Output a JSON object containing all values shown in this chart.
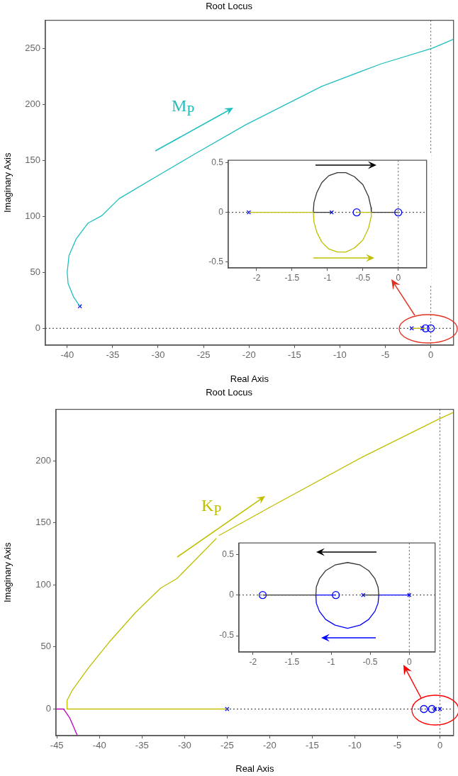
{
  "chart_data": [
    {
      "type": "line",
      "title": "Root Locus",
      "xlabel": "Real Axis",
      "ylabel": "Imaginary Axis",
      "xlim": [
        -42.4,
        2.5
      ],
      "ylim": [
        -15,
        275
      ],
      "xticks": [
        -40,
        -35,
        -30,
        -25,
        -20,
        -15,
        -10,
        -5,
        0
      ],
      "yticks": [
        0,
        50,
        100,
        150,
        200,
        250
      ],
      "grid": false,
      "legend": false,
      "annotations": [
        "M$_{P}$"
      ],
      "ref_lines": [
        {
          "axis": "x",
          "value": 0,
          "color": "#555555",
          "line_style": "dotted"
        },
        {
          "axis": "y",
          "value": 0,
          "color": "#333333",
          "line_style": "dotted"
        }
      ],
      "series": [
        {
          "color": "#1fbfbf",
          "marker": "none",
          "x": [
            -38.6,
            -39.3,
            -39.9,
            -40,
            -39.8,
            -39,
            -37.7,
            -36.2,
            -34.3,
            -30.4,
            -26.1,
            -20.3,
            -12,
            -5.5,
            0.15,
            2.5
          ],
          "values": [
            19.7,
            28,
            40,
            50,
            65,
            80,
            94,
            100.5,
            115.7,
            134.5,
            155,
            182,
            216,
            236,
            250,
            258
          ]
        },
        {
          "color": "#bfbf00",
          "marker": "none",
          "x": [
            -2.1,
            -0.58
          ],
          "values": [
            0,
            0
          ]
        },
        {
          "type": "scatter",
          "color": "#0000ff",
          "marker": "cross",
          "x": [
            -38.6,
            -2.1,
            -0.93
          ],
          "values": [
            19.7,
            0,
            0
          ]
        },
        {
          "type": "scatter",
          "color": "#0000ff",
          "marker": "circle",
          "x": [
            -0.58,
            0
          ],
          "values": [
            0,
            0
          ]
        }
      ]
    },
    {
      "type": "line",
      "xlim": [
        -2.4,
        0.4
      ],
      "ylim": [
        -0.56,
        0.525
      ],
      "xticks": [
        -2,
        -1.5,
        -1,
        -0.5,
        0
      ],
      "yticks": [
        -0.5,
        0,
        0.5
      ],
      "grid": false,
      "legend": false,
      "ref_lines": [
        {
          "axis": "x",
          "value": 0,
          "color": "#555555",
          "line_style": "dotted"
        },
        {
          "axis": "y",
          "value": 0,
          "color": "#333333",
          "line_style": "dotted"
        }
      ],
      "series": [
        {
          "color": "#bfbf00",
          "marker": "none",
          "x": [
            -2.11,
            -1.2,
            -1.19,
            -1.15,
            -1.08,
            -0.98,
            -0.86,
            -0.74,
            -0.62,
            -0.5,
            -0.42,
            -0.385,
            -0.38,
            -0.587
          ],
          "values": [
            0,
            0,
            -0.1,
            -0.2,
            -0.3,
            -0.37,
            -0.4,
            -0.4,
            -0.36,
            -0.28,
            -0.16,
            -0.05,
            0,
            0
          ]
        },
        {
          "color": "#333333",
          "marker": "none",
          "x": [
            -0.94,
            -1.2,
            -1.19,
            -1.15,
            -1.08,
            -0.98,
            -0.86,
            -0.74,
            -0.62,
            -0.5,
            -0.42,
            -0.385,
            -0.38,
            0
          ],
          "values": [
            0,
            0,
            0.1,
            0.2,
            0.3,
            0.37,
            0.4,
            0.4,
            0.36,
            0.28,
            0.16,
            0.05,
            0,
            0
          ]
        },
        {
          "type": "scatter",
          "color": "#0000ff",
          "marker": "cross",
          "x": [
            -2.11,
            -0.94
          ],
          "values": [
            0,
            0
          ]
        },
        {
          "type": "scatter",
          "color": "#0000ff",
          "marker": "circle",
          "x": [
            -0.587,
            0
          ],
          "values": [
            0,
            0
          ]
        }
      ]
    },
    {
      "type": "line",
      "title": "Root Locus",
      "xlabel": "Real Axis",
      "ylabel": "Imaginary Axis",
      "xlim": [
        -45.1,
        1.6
      ],
      "ylim": [
        -21.4,
        241.4
      ],
      "xticks": [
        -45,
        -40,
        -35,
        -30,
        -25,
        -20,
        -15,
        -10,
        -5,
        0
      ],
      "yticks": [
        0,
        50,
        100,
        150,
        200
      ],
      "grid": false,
      "legend": false,
      "annotations": [
        "K$_{P}$"
      ],
      "ref_lines": [
        {
          "axis": "x",
          "value": 0,
          "color": "#555555",
          "line_style": "dotted"
        },
        {
          "axis": "y",
          "value": 0,
          "color": "#333333",
          "line_style": "dotted"
        }
      ],
      "series": [
        {
          "color": "#bfbf00",
          "marker": "none",
          "x": [
            -25,
            -43.8,
            -43.8,
            -43.2,
            -41.3,
            -38.9,
            -35.8,
            -32.8,
            -30.9,
            -25.9,
            -19.4,
            -9.1,
            0,
            1.6
          ],
          "values": [
            0,
            0,
            7,
            15,
            33,
            53.5,
            77.5,
            97.5,
            105,
            140,
            164.7,
            203,
            234,
            239
          ]
        },
        {
          "color": "#bf00bf",
          "marker": "none",
          "x": [
            -45.1,
            -44.2,
            -43.5,
            -42.6
          ],
          "values": [
            0,
            0,
            -7,
            -21.2
          ]
        },
        {
          "type": "scatter",
          "color": "#0000ff",
          "marker": "cross",
          "x": [
            -25,
            -0.59,
            0
          ],
          "values": [
            0,
            0,
            0
          ]
        },
        {
          "type": "scatter",
          "color": "#0000ff",
          "marker": "circle",
          "x": [
            -1.88,
            -0.94
          ],
          "values": [
            0,
            0
          ]
        }
      ]
    },
    {
      "type": "line",
      "xlim": [
        -2.18,
        0.33
      ],
      "ylim": [
        -0.7,
        0.64
      ],
      "xticks": [
        -2,
        -1.5,
        -1,
        -0.5,
        0
      ],
      "yticks": [
        -0.5,
        0,
        0.5
      ],
      "grid": false,
      "legend": false,
      "ref_lines": [
        {
          "axis": "x",
          "value": 0,
          "color": "#555555",
          "line_style": "dotted"
        },
        {
          "axis": "y",
          "value": 0,
          "color": "#333333",
          "line_style": "dotted"
        }
      ],
      "series": [
        {
          "color": "#333333",
          "marker": "none",
          "x": [
            -0.59,
            -0.39,
            -0.4,
            -0.44,
            -0.52,
            -0.63,
            -0.79,
            -0.95,
            -1.07,
            -1.15,
            -1.19,
            -1.195,
            -1.876
          ],
          "values": [
            0,
            0,
            0.1,
            0.2,
            0.3,
            0.37,
            0.4,
            0.37,
            0.3,
            0.2,
            0.1,
            0,
            0
          ]
        },
        {
          "color": "#0000ff",
          "marker": "none",
          "x": [
            0,
            -0.39,
            -0.4,
            -0.44,
            -0.52,
            -0.63,
            -0.79,
            -0.95,
            -1.07,
            -1.15,
            -1.19,
            -1.195,
            -0.94
          ],
          "values": [
            0,
            0,
            -0.1,
            -0.2,
            -0.3,
            -0.37,
            -0.41,
            -0.37,
            -0.3,
            -0.2,
            -0.1,
            0,
            0
          ]
        },
        {
          "type": "scatter",
          "color": "#0000ff",
          "marker": "cross",
          "x": [
            -0.59,
            0
          ],
          "values": [
            0,
            0
          ]
        },
        {
          "type": "scatter",
          "color": "#0000ff",
          "marker": "circle",
          "x": [
            -1.876,
            -0.94
          ],
          "values": [
            0,
            0
          ]
        }
      ]
    }
  ]
}
